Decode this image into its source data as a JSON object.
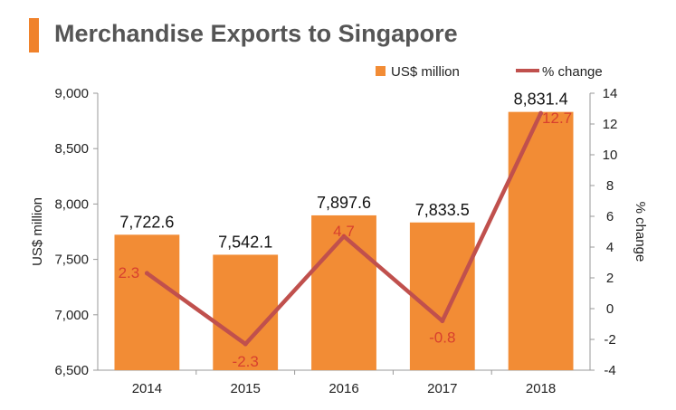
{
  "title": "Merchandise Exports to Singapore",
  "colors": {
    "accent": "#f0822b",
    "bar": "#f28c35",
    "line": "#c0504d",
    "pct_label": "#d8402e"
  },
  "chart_data": {
    "type": "bar",
    "title": "Merchandise Exports to Singapore",
    "categories": [
      "2014",
      "2015",
      "2016",
      "2017",
      "2018"
    ],
    "series": [
      {
        "name": "US$ million",
        "type": "bar",
        "axis": "left",
        "values": [
          7722.6,
          7542.1,
          7897.6,
          7833.5,
          8831.4
        ],
        "labels": [
          "7,722.6",
          "7,542.1",
          "7,897.6",
          "7,833.5",
          "8,831.4"
        ]
      },
      {
        "name": "% change",
        "type": "line",
        "axis": "right",
        "values": [
          2.3,
          -2.3,
          4.7,
          -0.8,
          12.7
        ],
        "labels": [
          "2.3",
          "-2.3",
          "4.7",
          "-0.8",
          "12.7"
        ]
      }
    ],
    "ylabel": "US$ million",
    "y2label": "% change",
    "ylim": [
      6500,
      9000
    ],
    "y2lim": [
      -4,
      14
    ],
    "yticks": [
      "6,500",
      "7,000",
      "7,500",
      "8,000",
      "8,500",
      "9,000"
    ],
    "y2ticks": [
      "-4",
      "-2",
      "0",
      "2",
      "4",
      "6",
      "8",
      "10",
      "12",
      "14"
    ],
    "grid": false,
    "legend": "top-right"
  }
}
